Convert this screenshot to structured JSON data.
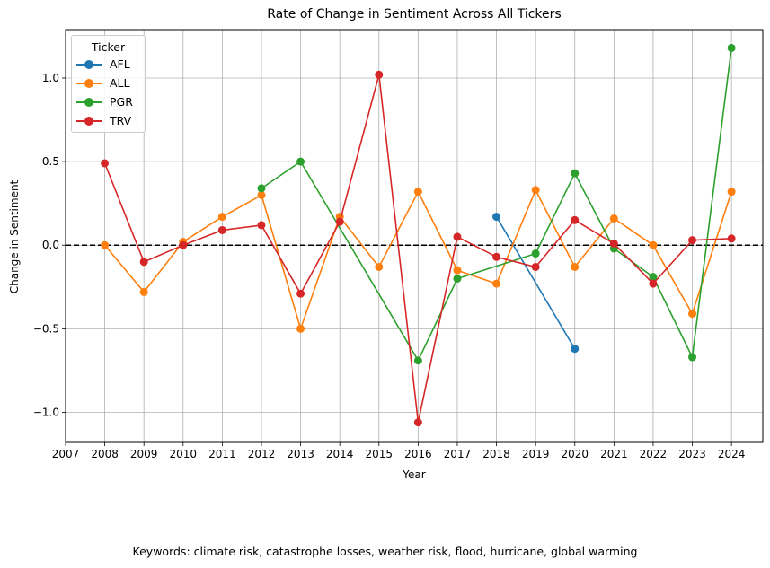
{
  "chart_data": {
    "type": "line",
    "title": "Rate of Change in Sentiment Across All Tickers",
    "xlabel": "Year",
    "ylabel": "Change in Sentiment",
    "footnote": "Keywords: climate risk, catastrophe losses, weather risk, flood, hurricane, global warming",
    "xlim": [
      2007,
      2024.8
    ],
    "ylim": [
      -1.18,
      1.29
    ],
    "x_ticks": [
      2007,
      2008,
      2009,
      2010,
      2011,
      2012,
      2013,
      2014,
      2015,
      2016,
      2017,
      2018,
      2019,
      2020,
      2021,
      2022,
      2023,
      2024
    ],
    "y_ticks": [
      -1.0,
      -0.5,
      0.0,
      0.5,
      1.0
    ],
    "y_tick_labels": [
      "−1.0",
      "−0.5",
      "0.0",
      "0.5",
      "1.0"
    ],
    "grid": true,
    "reference_line": {
      "y": 0,
      "style": "dashed",
      "color": "#000000"
    },
    "legend": {
      "title": "Ticker",
      "position": "top-left"
    },
    "series": [
      {
        "name": "AFL",
        "color": "#1f77b4",
        "points": [
          [
            2018,
            0.17
          ],
          [
            2020,
            -0.62
          ]
        ]
      },
      {
        "name": "ALL",
        "color": "#ff7f0e",
        "points": [
          [
            2008,
            0.0
          ],
          [
            2009,
            -0.28
          ],
          [
            2010,
            0.02
          ],
          [
            2011,
            0.17
          ],
          [
            2012,
            0.3
          ],
          [
            2013,
            -0.5
          ],
          [
            2014,
            0.17
          ],
          [
            2015,
            -0.13
          ],
          [
            2016,
            0.32
          ],
          [
            2017,
            -0.15
          ],
          [
            2018,
            -0.23
          ],
          [
            2019,
            0.33
          ],
          [
            2020,
            -0.13
          ],
          [
            2021,
            0.16
          ],
          [
            2022,
            0.0
          ],
          [
            2023,
            -0.41
          ],
          [
            2024,
            0.32
          ]
        ]
      },
      {
        "name": "PGR",
        "color": "#2ca02c",
        "points": [
          [
            2012,
            0.34
          ],
          [
            2013,
            0.5
          ],
          [
            2016,
            -0.69
          ],
          [
            2017,
            -0.2
          ],
          [
            2019,
            -0.05
          ],
          [
            2020,
            0.43
          ],
          [
            2021,
            -0.02
          ],
          [
            2022,
            -0.19
          ],
          [
            2023,
            -0.67
          ],
          [
            2024,
            1.18
          ]
        ]
      },
      {
        "name": "TRV",
        "color": "#d62728",
        "points": [
          [
            2008,
            0.49
          ],
          [
            2009,
            -0.1
          ],
          [
            2010,
            0.0
          ],
          [
            2011,
            0.09
          ],
          [
            2012,
            0.12
          ],
          [
            2013,
            -0.29
          ],
          [
            2014,
            0.14
          ],
          [
            2015,
            1.02
          ],
          [
            2016,
            -1.06
          ],
          [
            2017,
            0.05
          ],
          [
            2018,
            -0.07
          ],
          [
            2019,
            -0.13
          ],
          [
            2020,
            0.15
          ],
          [
            2021,
            0.01
          ],
          [
            2022,
            -0.23
          ],
          [
            2023,
            0.03
          ],
          [
            2024,
            0.04
          ]
        ]
      }
    ]
  }
}
